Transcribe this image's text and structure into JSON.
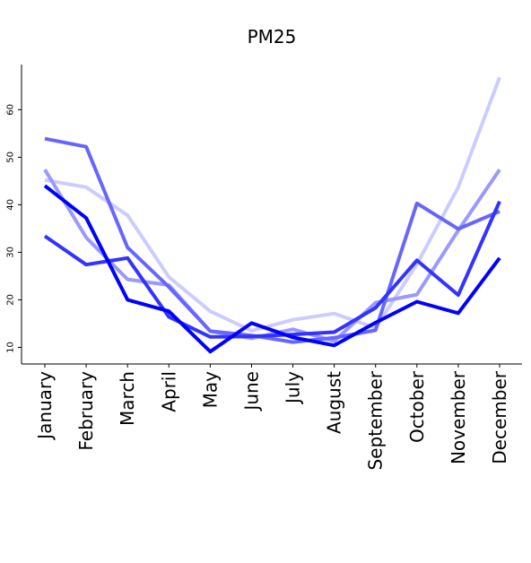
{
  "chart_data": {
    "type": "line",
    "title": "PM25",
    "xlabel": "",
    "ylabel": "",
    "categories": [
      "January",
      "February",
      "March",
      "April",
      "May",
      "June",
      "July",
      "August",
      "September",
      "October",
      "November",
      "December"
    ],
    "yticks": [
      10,
      20,
      30,
      40,
      50,
      60
    ],
    "ylim": [
      6.5,
      69.5
    ],
    "grid": false,
    "legend": "none",
    "series": [
      {
        "color": "#ccccff",
        "values": [
          45.2,
          43.7,
          37.8,
          24.8,
          17.6,
          13.5,
          15.8,
          17.1,
          14.1,
          27.5,
          43.7,
          66.8
        ]
      },
      {
        "color": "#9999ff",
        "values": [
          47.4,
          33.1,
          24.3,
          23.1,
          13.4,
          11.9,
          13.8,
          11.3,
          19.4,
          21.1,
          34.6,
          47.4
        ]
      },
      {
        "color": "#6666ff",
        "values": [
          53.9,
          52.2,
          31.0,
          22.7,
          13.4,
          12.5,
          11.1,
          12.0,
          13.6,
          40.3,
          34.9,
          38.6
        ]
      },
      {
        "color": "#3333ff",
        "values": [
          33.4,
          27.4,
          28.8,
          16.4,
          12.2,
          12.3,
          12.7,
          13.2,
          18.3,
          28.3,
          21.0,
          40.7
        ]
      },
      {
        "color": "#0000ff",
        "values": [
          44.0,
          37.2,
          20.0,
          17.6,
          9.1,
          15.1,
          12.1,
          10.4,
          15.2,
          19.6,
          17.2,
          28.8
        ]
      }
    ]
  }
}
